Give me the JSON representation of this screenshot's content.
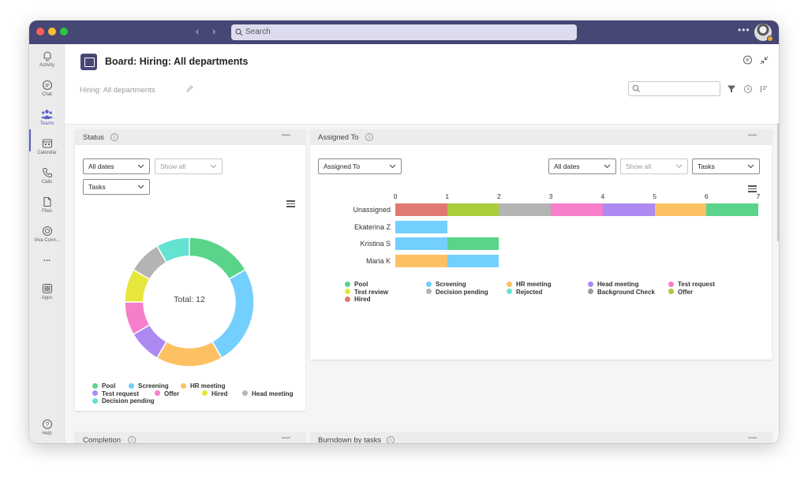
{
  "titlebar": {
    "search_placeholder": "Search",
    "icons": [
      "back-icon",
      "forward-icon",
      "search-icon",
      "more-icon"
    ],
    "colors": {
      "bar": "#464775"
    }
  },
  "rail": {
    "items": [
      {
        "label": "Activity",
        "icon": "bell-icon"
      },
      {
        "label": "Chat",
        "icon": "chat-icon"
      },
      {
        "label": "Teams",
        "icon": "teams-icon",
        "active": true
      },
      {
        "label": "Calendar",
        "icon": "calendar-icon"
      },
      {
        "label": "Calls",
        "icon": "phone-icon"
      },
      {
        "label": "Files",
        "icon": "file-icon"
      },
      {
        "label": "Viva Conn...",
        "icon": "viva-icon"
      },
      {
        "label": "...",
        "icon": "more-icon"
      },
      {
        "label": "Apps",
        "icon": "apps-icon"
      },
      {
        "label": "Help",
        "icon": "help-icon"
      }
    ]
  },
  "header": {
    "title": "Board: Hiring: All departments",
    "breadcrumb": "Hiring: All departments"
  },
  "status_panel": {
    "title": "Status",
    "filters": {
      "dates": "All dates",
      "show": "Show all",
      "type": "Tasks"
    },
    "total_label": "Total: 12"
  },
  "assigned_panel": {
    "title": "Assigned To",
    "filters": {
      "group": "Assigned To",
      "dates": "All dates",
      "show": "Show all",
      "type": "Tasks"
    }
  },
  "completion_panel": {
    "title": "Completion"
  },
  "burndown_panel": {
    "title": "Burndown by tasks"
  },
  "chart_data": [
    {
      "type": "pie",
      "center_label": "Total: 12",
      "slices": [
        {
          "name": "Pool",
          "value": 2,
          "color": "#5ad48a"
        },
        {
          "name": "Screening",
          "value": 3,
          "color": "#73cffd"
        },
        {
          "name": "HR meeting",
          "value": 2,
          "color": "#fdc163"
        },
        {
          "name": "Test request",
          "value": 1,
          "color": "#ad8af1"
        },
        {
          "name": "Offer",
          "value": 1,
          "color": "#f77ecb"
        },
        {
          "name": "Hired",
          "value": 1,
          "color": "#e6e63c"
        },
        {
          "name": "Head meeting",
          "value": 1,
          "color": "#b4b4b4"
        },
        {
          "name": "Decision pending",
          "value": 1,
          "color": "#64e2d2"
        }
      ],
      "legend": [
        "Pool",
        "Screening",
        "HR meeting",
        "Test request",
        "Offer",
        "Hired",
        "Head meeting",
        "Decision pending"
      ]
    },
    {
      "type": "bar",
      "orientation": "horizontal",
      "stacked": true,
      "categories": [
        "Unassigned",
        "Ekaterina Z",
        "Kristina S",
        "Maria K"
      ],
      "xlim": [
        0,
        7
      ],
      "xticks": [
        0,
        1,
        2,
        3,
        4,
        5,
        6,
        7
      ],
      "series": [
        {
          "name": "Hired",
          "color": "#e07a70",
          "values": [
            1,
            0,
            0,
            0
          ]
        },
        {
          "name": "Offer",
          "color": "#a9cc3a",
          "values": [
            1,
            0,
            0,
            0
          ]
        },
        {
          "name": "Decision pending",
          "color": "#b4b4b4",
          "values": [
            1,
            0,
            0,
            0
          ]
        },
        {
          "name": "Test request",
          "color": "#f77ecb",
          "values": [
            1,
            0,
            0,
            0
          ]
        },
        {
          "name": "Head meeting",
          "color": "#ad8af1",
          "values": [
            1,
            0,
            0,
            0
          ]
        },
        {
          "name": "HR meeting",
          "color": "#fdc163",
          "values": [
            1,
            0,
            0,
            1
          ]
        },
        {
          "name": "Pool",
          "color": "#5ad48a",
          "values": [
            1,
            0,
            1,
            0
          ]
        },
        {
          "name": "Screening",
          "color": "#73cffd",
          "values": [
            0,
            1,
            1,
            1
          ]
        }
      ],
      "legend": [
        {
          "name": "Pool",
          "color": "#5ad48a"
        },
        {
          "name": "Screening",
          "color": "#73cffd"
        },
        {
          "name": "HR meeting",
          "color": "#fdc163"
        },
        {
          "name": "Head meeting",
          "color": "#ad8af1"
        },
        {
          "name": "Test request",
          "color": "#f77ecb"
        },
        {
          "name": "Test review",
          "color": "#e6e63c"
        },
        {
          "name": "Decision pending",
          "color": "#b4b4b4"
        },
        {
          "name": "Rejected",
          "color": "#64e2d2"
        },
        {
          "name": "Background Check",
          "color": "#a39b9b"
        },
        {
          "name": "Offer",
          "color": "#a9cc3a"
        },
        {
          "name": "Hired",
          "color": "#e07a70"
        }
      ]
    }
  ]
}
